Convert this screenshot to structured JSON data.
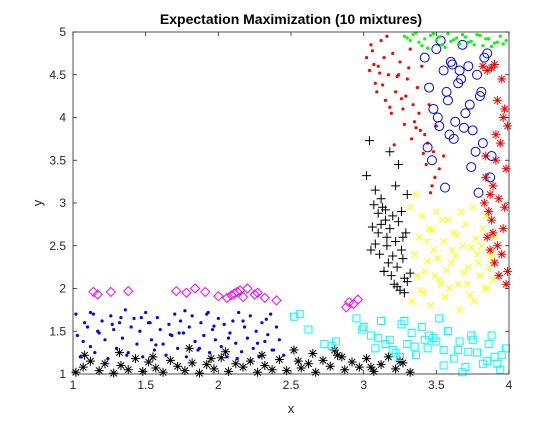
{
  "chart_data": {
    "type": "scatter",
    "title": "Expectation Maximization (10 mixtures)",
    "xlabel": "x",
    "ylabel": "y",
    "xlim": [
      1,
      4
    ],
    "ylim": [
      1,
      5
    ],
    "xticks": [
      "1",
      "1.5",
      "2",
      "2.5",
      "3",
      "3.5",
      "4"
    ],
    "yticks": [
      "1",
      "1.5",
      "2",
      "2.5",
      "3",
      "3.5",
      "4",
      "4.5",
      "5"
    ],
    "grid": false,
    "legend": "none",
    "series": [
      {
        "marker": "dot",
        "color": "#0000ff",
        "x": [
          1.02,
          1.03,
          1.05,
          1.08,
          1.1,
          1.12,
          1.14,
          1.15,
          1.18,
          1.2,
          1.22,
          1.24,
          1.26,
          1.28,
          1.3,
          1.32,
          1.34,
          1.36,
          1.38,
          1.4,
          1.42,
          1.44,
          1.46,
          1.48,
          1.5,
          1.52,
          1.54,
          1.56,
          1.58,
          1.6,
          1.62,
          1.64,
          1.66,
          1.68,
          1.7,
          1.72,
          1.74,
          1.76,
          1.78,
          1.8,
          1.82,
          1.84,
          1.86,
          1.88,
          1.9,
          1.92,
          1.94,
          1.96,
          1.98,
          2.0,
          2.02,
          2.04,
          2.06,
          2.08,
          2.1,
          2.12,
          2.14,
          2.16,
          2.18,
          2.2,
          2.22,
          2.24,
          2.26,
          2.28,
          2.3,
          2.32,
          2.34,
          2.36,
          2.38,
          2.4,
          2.42,
          2.45,
          1.07,
          1.17,
          1.27,
          1.37,
          1.47,
          1.57,
          1.67,
          1.77,
          1.87,
          1.97,
          2.07,
          2.17,
          2.27,
          2.37,
          1.12,
          1.33,
          1.53,
          1.73,
          1.93,
          2.13,
          2.33
        ],
        "y": [
          1.7,
          1.45,
          1.2,
          1.6,
          1.55,
          1.32,
          1.7,
          1.25,
          1.48,
          1.62,
          1.4,
          1.18,
          1.68,
          1.52,
          1.3,
          1.6,
          1.42,
          1.75,
          1.25,
          1.55,
          1.65,
          1.35,
          1.5,
          1.2,
          1.72,
          1.6,
          1.4,
          1.28,
          1.66,
          1.52,
          1.35,
          1.22,
          1.58,
          1.45,
          1.7,
          1.3,
          1.62,
          1.48,
          1.2,
          1.55,
          1.68,
          1.38,
          1.28,
          1.6,
          1.45,
          1.7,
          1.25,
          1.52,
          1.4,
          1.65,
          1.32,
          1.58,
          1.2,
          1.48,
          1.62,
          1.36,
          1.72,
          1.26,
          1.55,
          1.42,
          1.68,
          1.3,
          1.5,
          1.2,
          1.6,
          1.38,
          1.46,
          1.7,
          1.28,
          1.55,
          1.4,
          1.22,
          1.38,
          1.5,
          1.58,
          1.22,
          1.66,
          1.34,
          1.46,
          1.74,
          1.3,
          1.56,
          1.42,
          1.62,
          1.36,
          1.28,
          1.72,
          1.66,
          1.6,
          1.48,
          1.72,
          1.18,
          1.64
        ]
      },
      {
        "marker": "diamond",
        "color": "#ff00ff",
        "x": [
          1.14,
          1.17,
          1.26,
          1.38,
          1.71,
          1.78,
          1.84,
          1.91,
          2.0,
          2.06,
          2.09,
          2.11,
          2.13,
          2.15,
          2.17,
          2.2,
          2.25,
          2.27,
          2.32,
          2.4,
          2.88,
          2.9,
          2.93,
          2.96
        ],
        "y": [
          1.96,
          1.93,
          1.96,
          1.97,
          1.97,
          1.95,
          2.0,
          1.96,
          1.91,
          1.89,
          1.92,
          1.94,
          1.96,
          1.98,
          1.9,
          2.0,
          1.93,
          1.95,
          1.89,
          1.86,
          1.78,
          1.84,
          1.82,
          1.87
        ]
      },
      {
        "marker": "asterisk",
        "color": "#000000",
        "x": [
          1.02,
          1.07,
          1.12,
          1.18,
          1.22,
          1.28,
          1.33,
          1.38,
          1.43,
          1.48,
          1.52,
          1.57,
          1.62,
          1.67,
          1.72,
          1.77,
          1.82,
          1.87,
          1.92,
          1.97,
          2.02,
          2.07,
          2.12,
          2.17,
          2.22,
          2.27,
          2.32,
          2.37,
          2.42,
          2.47,
          2.52,
          2.57,
          2.62,
          2.67,
          2.72,
          2.77,
          2.82,
          2.87,
          2.92,
          2.97,
          3.02,
          3.07,
          3.12,
          3.17,
          3.22,
          3.27,
          3.32,
          1.08,
          1.32,
          1.55,
          1.8,
          2.05,
          2.3,
          2.55,
          2.8,
          3.05,
          3.25,
          1.95,
          2.65,
          2.85
        ],
        "y": [
          1.02,
          1.08,
          1.15,
          1.04,
          1.12,
          1.01,
          1.1,
          1.05,
          1.18,
          1.03,
          1.14,
          1.07,
          1.02,
          1.16,
          1.09,
          1.04,
          1.13,
          1.01,
          1.11,
          1.06,
          1.19,
          1.03,
          1.12,
          1.08,
          1.15,
          1.02,
          1.1,
          1.05,
          1.17,
          1.04,
          1.28,
          1.07,
          1.12,
          1.02,
          1.16,
          1.09,
          1.22,
          1.05,
          1.14,
          1.08,
          1.18,
          1.03,
          1.11,
          1.2,
          1.06,
          1.13,
          1.02,
          1.22,
          1.25,
          1.2,
          1.3,
          1.26,
          1.22,
          1.15,
          1.28,
          1.08,
          1.15,
          1.18,
          1.24,
          1.2
        ]
      },
      {
        "marker": "square",
        "color": "#00ffff",
        "x": [
          2.52,
          2.56,
          2.62,
          2.73,
          2.78,
          2.81,
          2.95,
          3.0,
          3.05,
          3.08,
          3.12,
          3.18,
          3.22,
          3.26,
          3.3,
          3.33,
          3.36,
          3.4,
          3.44,
          3.48,
          3.52,
          3.55,
          3.58,
          3.62,
          3.66,
          3.7,
          3.74,
          3.78,
          3.82,
          3.86,
          3.9,
          3.94,
          3.98,
          3.1,
          3.25,
          3.35,
          3.45,
          3.55,
          3.65,
          3.75,
          3.85,
          3.95,
          3.2,
          3.5,
          3.68,
          3.88,
          2.99,
          3.15,
          3.28,
          3.42,
          3.58,
          3.72,
          3.92
        ],
        "y": [
          1.67,
          1.7,
          1.52,
          1.35,
          1.33,
          1.38,
          1.65,
          1.55,
          1.45,
          1.3,
          1.62,
          1.4,
          1.25,
          1.58,
          1.35,
          1.48,
          1.22,
          1.55,
          1.3,
          1.42,
          1.65,
          1.28,
          1.5,
          1.18,
          1.38,
          1.08,
          1.45,
          1.25,
          1.12,
          1.35,
          1.2,
          1.05,
          1.3,
          1.42,
          1.2,
          1.32,
          1.45,
          1.1,
          1.28,
          1.4,
          1.15,
          1.22,
          1.28,
          1.38,
          1.02,
          1.45,
          1.52,
          1.35,
          1.62,
          1.4,
          1.5,
          1.26,
          1.12
        ]
      },
      {
        "marker": "plus",
        "color": "#000000",
        "x": [
          3.04,
          3.02,
          3.08,
          3.1,
          3.12,
          3.13,
          3.15,
          3.16,
          3.18,
          3.2,
          3.22,
          3.24,
          3.26,
          3.27,
          3.29,
          3.05,
          3.08,
          3.11,
          3.14,
          3.17,
          3.19,
          3.21,
          3.23,
          3.25,
          3.28,
          3.3,
          3.12,
          3.18,
          3.24,
          3.07,
          3.15,
          3.22,
          3.3,
          3.1,
          3.2,
          3.27,
          3.16,
          3.26,
          3.32,
          3.06,
          3.14,
          3.23,
          3.28
        ],
        "y": [
          3.73,
          3.32,
          3.15,
          2.88,
          2.75,
          2.95,
          2.8,
          2.6,
          2.7,
          2.85,
          2.55,
          2.78,
          2.9,
          2.35,
          2.65,
          2.45,
          2.52,
          2.4,
          2.2,
          2.3,
          2.15,
          2.05,
          2.25,
          1.98,
          2.12,
          2.08,
          3.05,
          3.6,
          3.45,
          2.98,
          2.92,
          3.2,
          3.1,
          2.65,
          2.38,
          2.6,
          2.5,
          2.45,
          2.18,
          2.72,
          2.2,
          2.02,
          1.95
        ]
      },
      {
        "marker": "cross",
        "color": "#ffff00",
        "x": [
          3.32,
          3.35,
          3.38,
          3.4,
          3.42,
          3.45,
          3.48,
          3.5,
          3.52,
          3.55,
          3.58,
          3.6,
          3.62,
          3.65,
          3.68,
          3.7,
          3.72,
          3.75,
          3.78,
          3.8,
          3.82,
          3.85,
          3.88,
          3.9,
          3.33,
          3.37,
          3.41,
          3.46,
          3.51,
          3.56,
          3.61,
          3.66,
          3.71,
          3.76,
          3.81,
          3.86,
          3.36,
          3.43,
          3.49,
          3.54,
          3.59,
          3.64,
          3.69,
          3.74,
          3.79,
          3.84,
          3.89,
          3.39,
          3.47,
          3.57,
          3.67,
          3.77,
          3.87,
          3.44,
          3.53,
          3.63,
          3.73,
          3.83
        ],
        "y": [
          2.95,
          2.4,
          2.6,
          2.85,
          2.2,
          2.7,
          2.45,
          2.9,
          2.1,
          2.55,
          2.8,
          2.3,
          2.65,
          2.05,
          2.5,
          2.75,
          2.25,
          2.95,
          2.4,
          2.15,
          2.7,
          2.0,
          2.35,
          2.6,
          1.85,
          2.15,
          1.95,
          1.8,
          2.35,
          1.9,
          2.45,
          1.75,
          2.05,
          1.85,
          2.5,
          2.25,
          3.1,
          2.55,
          2.15,
          2.8,
          2.0,
          2.62,
          2.18,
          2.48,
          2.3,
          2.85,
          2.1,
          1.98,
          2.68,
          2.22,
          2.9,
          2.58,
          2.42,
          2.32,
          2.05,
          2.38,
          1.92,
          2.0
        ]
      },
      {
        "marker": "dot",
        "color": "#ff0000",
        "x": [
          3.02,
          3.05,
          3.08,
          3.1,
          3.12,
          3.15,
          3.17,
          3.2,
          3.22,
          3.25,
          3.27,
          3.3,
          3.32,
          3.35,
          3.37,
          3.4,
          3.42,
          3.45,
          3.48,
          3.5,
          3.52,
          3.55,
          3.04,
          3.09,
          3.14,
          3.19,
          3.24,
          3.29,
          3.34,
          3.39,
          3.44,
          3.49,
          3.07,
          3.13,
          3.18,
          3.23,
          3.28,
          3.33,
          3.38,
          3.43,
          3.47,
          3.06,
          3.11,
          3.16,
          3.21,
          3.26,
          3.31,
          3.36,
          3.41,
          3.46
        ],
        "y": [
          4.7,
          4.85,
          4.4,
          4.6,
          4.9,
          4.2,
          4.5,
          4.75,
          4.3,
          4.65,
          4.1,
          4.45,
          4.8,
          3.95,
          4.35,
          4.6,
          3.8,
          4.15,
          3.6,
          3.9,
          3.4,
          3.55,
          4.55,
          4.3,
          4.7,
          4.05,
          4.5,
          4.25,
          4.15,
          3.85,
          3.7,
          3.3,
          4.62,
          4.38,
          4.12,
          4.48,
          3.92,
          3.75,
          4.05,
          3.45,
          3.2,
          4.78,
          4.52,
          4.95,
          3.68,
          4.22,
          4.58,
          3.88,
          3.58,
          3.12
        ]
      },
      {
        "marker": "asterisk",
        "color": "#ff0000",
        "x": [
          3.82,
          3.85,
          3.88,
          3.9,
          3.92,
          3.95,
          3.97,
          3.99,
          3.84,
          3.87,
          3.91,
          3.94,
          3.98,
          3.86,
          3.89,
          3.93,
          3.96,
          3.83,
          3.88,
          3.92,
          3.97,
          3.85,
          3.9,
          3.95,
          3.99,
          3.87,
          3.93,
          3.98,
          3.84,
          3.91,
          3.96,
          3.89
        ],
        "y": [
          4.6,
          4.55,
          4.58,
          4.62,
          4.2,
          4.45,
          4.1,
          3.9,
          3.3,
          3.1,
          3.5,
          3.7,
          3.4,
          2.9,
          3.2,
          3.05,
          2.7,
          3.0,
          2.8,
          2.5,
          2.95,
          2.6,
          2.3,
          2.4,
          2.2,
          2.45,
          2.15,
          2.05,
          3.55,
          3.8,
          4.0,
          2.65
        ]
      },
      {
        "marker": "circle",
        "color": "#0000ff",
        "x": [
          3.42,
          3.45,
          3.48,
          3.5,
          3.52,
          3.55,
          3.58,
          3.6,
          3.62,
          3.65,
          3.68,
          3.7,
          3.72,
          3.75,
          3.78,
          3.8,
          3.82,
          3.85,
          3.88,
          3.47,
          3.53,
          3.57,
          3.63,
          3.67,
          3.73,
          3.77,
          3.83,
          3.87,
          3.44,
          3.51,
          3.59,
          3.66,
          3.74,
          3.81,
          3.56,
          3.69,
          3.79,
          3.61
        ],
        "y": [
          4.7,
          4.35,
          4.1,
          4.8,
          3.9,
          4.55,
          4.2,
          4.65,
          3.75,
          4.4,
          4.85,
          4.05,
          4.6,
          3.85,
          4.5,
          4.25,
          3.7,
          4.75,
          3.55,
          3.5,
          4.9,
          4.3,
          3.95,
          4.45,
          4.15,
          3.6,
          4.7,
          3.3,
          3.65,
          4.0,
          3.8,
          4.55,
          3.42,
          4.3,
          3.18,
          3.88,
          3.12,
          4.62
        ]
      },
      {
        "marker": "dot",
        "color": "#00ff00",
        "x": [
          3.28,
          3.3,
          3.34,
          3.38,
          3.42,
          3.46,
          3.5,
          3.54,
          3.58,
          3.62,
          3.66,
          3.7,
          3.74,
          3.78,
          3.82,
          3.86,
          3.9,
          3.94,
          3.98,
          3.32,
          3.4,
          3.48,
          3.56,
          3.64,
          3.72,
          3.8,
          3.88,
          3.96,
          3.36,
          3.44,
          3.52,
          3.6,
          3.68,
          3.76,
          3.84,
          3.92
        ],
        "y": [
          4.95,
          4.93,
          4.97,
          4.88,
          4.92,
          4.96,
          4.9,
          4.85,
          4.98,
          4.91,
          4.86,
          4.94,
          4.89,
          4.97,
          4.84,
          4.92,
          4.87,
          4.95,
          4.9,
          4.9,
          4.84,
          4.98,
          4.82,
          4.93,
          4.88,
          4.96,
          4.83,
          4.86,
          4.99,
          4.81,
          4.94,
          4.89,
          4.97,
          4.85,
          4.92,
          4.88
        ]
      }
    ]
  }
}
